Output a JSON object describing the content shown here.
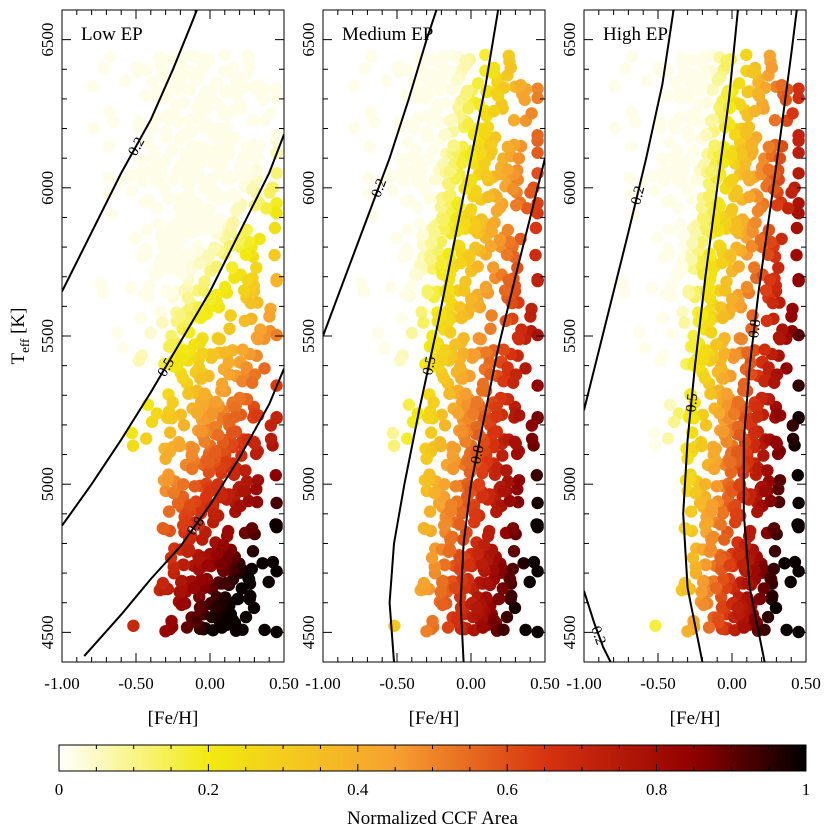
{
  "chart_data": {
    "type": "scatter",
    "panels": [
      {
        "title": "Low EP",
        "xlabel": "[Fe/H]",
        "ylabel": "T_eff [K]",
        "xlim": [
          -1.0,
          0.5
        ],
        "ylim": [
          4400,
          6600
        ],
        "contours": [
          {
            "label": "0.2",
            "points": [
              [
                -1.0,
                5650
              ],
              [
                -0.8,
                5850
              ],
              [
                -0.6,
                6050
              ],
              [
                -0.4,
                6230
              ],
              [
                -0.25,
                6400
              ],
              [
                -0.12,
                6560
              ],
              [
                -0.05,
                6650
              ]
            ]
          },
          {
            "label": "0.5",
            "points": [
              [
                -1.0,
                4860
              ],
              [
                -0.8,
                5000
              ],
              [
                -0.6,
                5150
              ],
              [
                -0.4,
                5310
              ],
              [
                -0.2,
                5480
              ],
              [
                0.0,
                5650
              ],
              [
                0.2,
                5850
              ],
              [
                0.4,
                6050
              ],
              [
                0.5,
                6180
              ]
            ]
          },
          {
            "label": "0.8",
            "points": [
              [
                -0.85,
                4420
              ],
              [
                -0.6,
                4560
              ],
              [
                -0.4,
                4680
              ],
              [
                -0.2,
                4790
              ],
              [
                0.0,
                4930
              ],
              [
                0.2,
                5090
              ],
              [
                0.4,
                5270
              ],
              [
                0.5,
                5390
              ]
            ]
          }
        ],
        "contour_label_values": [
          0.2,
          0.5,
          0.8
        ]
      },
      {
        "title": "Medium EP",
        "xlabel": "[Fe/H]",
        "xlim": [
          -1.0,
          0.5
        ],
        "ylim": [
          4400,
          6600
        ],
        "contours": [
          {
            "label": "0.2",
            "points": [
              [
                -1.0,
                5500
              ],
              [
                -0.85,
                5700
              ],
              [
                -0.7,
                5900
              ],
              [
                -0.55,
                6100
              ],
              [
                -0.42,
                6300
              ],
              [
                -0.3,
                6500
              ],
              [
                -0.2,
                6650
              ]
            ]
          },
          {
            "label": "0.5",
            "points": [
              [
                -0.52,
                4400
              ],
              [
                -0.55,
                4600
              ],
              [
                -0.52,
                4800
              ],
              [
                -0.45,
                5000
              ],
              [
                -0.35,
                5250
              ],
              [
                -0.22,
                5550
              ],
              [
                -0.1,
                5850
              ],
              [
                0.0,
                6100
              ],
              [
                0.1,
                6350
              ],
              [
                0.2,
                6650
              ]
            ]
          },
          {
            "label": "0.8",
            "points": [
              [
                -0.05,
                4400
              ],
              [
                -0.07,
                4600
              ],
              [
                -0.05,
                4800
              ],
              [
                0.0,
                5000
              ],
              [
                0.08,
                5200
              ],
              [
                0.18,
                5450
              ],
              [
                0.3,
                5700
              ],
              [
                0.4,
                5900
              ],
              [
                0.5,
                6100
              ]
            ]
          }
        ],
        "contour_label_values": [
          0.2,
          0.5,
          0.8
        ]
      },
      {
        "title": "High EP",
        "xlabel": "[Fe/H]",
        "xlim": [
          -1.0,
          0.5
        ],
        "ylim": [
          4400,
          6600
        ],
        "contours": [
          {
            "label": "0.2",
            "points": [
              [
                -1.0,
                5250
              ],
              [
                -0.85,
                5550
              ],
              [
                -0.7,
                5850
              ],
              [
                -0.58,
                6100
              ],
              [
                -0.47,
                6350
              ],
              [
                -0.38,
                6650
              ]
            ]
          },
          {
            "label": "0.5",
            "points": [
              [
                -0.2,
                4400
              ],
              [
                -0.3,
                4650
              ],
              [
                -0.33,
                4900
              ],
              [
                -0.3,
                5150
              ],
              [
                -0.25,
                5400
              ],
              [
                -0.18,
                5700
              ],
              [
                -0.1,
                6000
              ],
              [
                -0.02,
                6300
              ],
              [
                0.05,
                6650
              ]
            ]
          },
          {
            "label": "0.8",
            "points": [
              [
                0.22,
                4400
              ],
              [
                0.12,
                4650
              ],
              [
                0.08,
                4900
              ],
              [
                0.08,
                5150
              ],
              [
                0.12,
                5400
              ],
              [
                0.18,
                5650
              ],
              [
                0.25,
                5900
              ],
              [
                0.32,
                6150
              ],
              [
                0.4,
                6450
              ],
              [
                0.45,
                6650
              ]
            ]
          },
          {
            "label": "0.2",
            "points": [
              [
                -1.0,
                4640
              ],
              [
                -0.93,
                4530
              ],
              [
                -0.87,
                4450
              ],
              [
                -0.82,
                4400
              ]
            ]
          }
        ],
        "contour_label_values": [
          0.2,
          0.5,
          0.8,
          0.2
        ]
      }
    ],
    "x_ticks": [
      -1.0,
      -0.5,
      0.0,
      0.5
    ],
    "x_tick_labels": [
      "-1.00",
      "-0.50",
      "0.00",
      "0.50"
    ],
    "y_ticks": [
      4500,
      5000,
      5500,
      6000,
      6500
    ],
    "y_tick_labels": [
      "4500",
      "5000",
      "5500",
      "6000",
      "6500"
    ],
    "colorbar": {
      "label": "Normalized CCF Area",
      "range": [
        0,
        1
      ],
      "ticks": [
        0,
        0.2,
        0.4,
        0.6,
        0.8,
        1
      ],
      "tick_labels": [
        "0",
        "0.2",
        "0.4",
        "0.6",
        "0.8",
        "1"
      ],
      "colormap": "hot-reversed",
      "stops": [
        {
          "pos": 0.0,
          "color": "#ffffff"
        },
        {
          "pos": 0.2,
          "color": "#f2ea10"
        },
        {
          "pos": 0.45,
          "color": "#f6a030"
        },
        {
          "pos": 0.65,
          "color": "#d83410"
        },
        {
          "pos": 0.85,
          "color": "#900000"
        },
        {
          "pos": 1.0,
          "color": "#000000"
        }
      ]
    },
    "grid": false
  }
}
